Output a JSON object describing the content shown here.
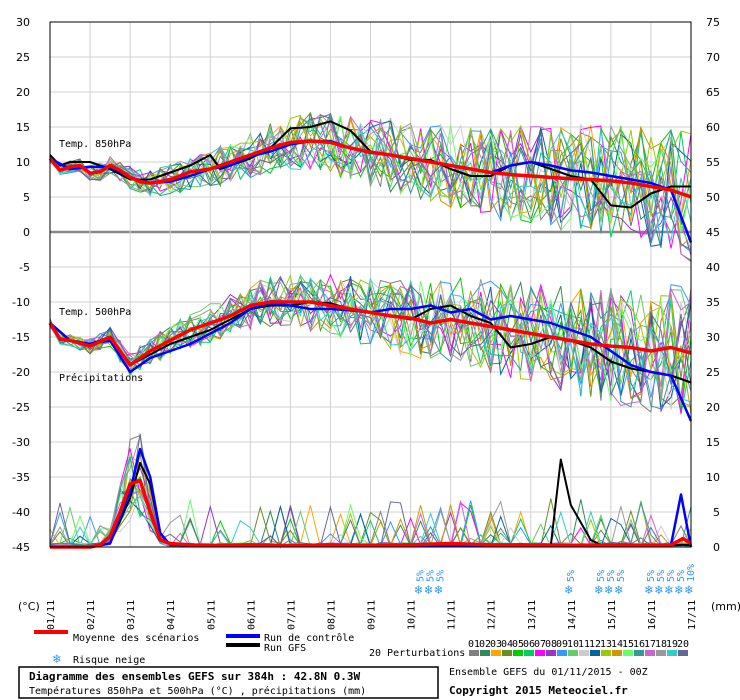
{
  "chart_data": {
    "type": "line",
    "title": "Diagramme des ensembles GEFS sur 384h : 42.8N 0.3W",
    "subtitle": "Températures 850hPa et 500hPa (°C) , précipitations (mm)",
    "left_axis_unit": "(°C)",
    "right_axis_unit": "(mm)",
    "left_axis": {
      "min": -45,
      "max": 30,
      "ticks": [
        30,
        25,
        20,
        15,
        10,
        5,
        0,
        -5,
        -10,
        -15,
        -20,
        -25,
        -30,
        -35,
        -40,
        -45
      ]
    },
    "right_axis": {
      "min": 0,
      "max": 75,
      "ticks": [
        75,
        70,
        65,
        60,
        55,
        50,
        45,
        40,
        35,
        30,
        25,
        20,
        15,
        10,
        5,
        0
      ]
    },
    "x_dates": [
      "01/11",
      "02/11",
      "03/11",
      "04/11",
      "05/11",
      "06/11",
      "07/11",
      "08/11",
      "09/11",
      "10/11",
      "11/11",
      "12/11",
      "13/11",
      "14/11",
      "15/11",
      "16/11",
      "17/11"
    ],
    "panel_labels": {
      "t850": "Temp. 850hPa",
      "t500": "Temp. 500hPa",
      "precip": "Précipitations"
    },
    "legend": {
      "mean": "Moyenne des scénarios",
      "control": "Run de contrôle",
      "gfs": "Run GFS",
      "snow": "Risque neige",
      "perturbations": "20 Perturbations",
      "perturbation_ids": [
        "01",
        "02",
        "03",
        "04",
        "05",
        "06",
        "07",
        "08",
        "09",
        "10",
        "11",
        "12",
        "13",
        "14",
        "15",
        "16",
        "17",
        "18",
        "19",
        "20"
      ]
    },
    "colors": {
      "mean": "#ff0000",
      "control": "#0000ff",
      "gfs": "#000000",
      "snow": "#3399ff",
      "perturbations": [
        "#808080",
        "#2e8b57",
        "#ffa500",
        "#6b8e23",
        "#00cc00",
        "#00cc66",
        "#ff00ff",
        "#9933cc",
        "#3399ff",
        "#66cc66",
        "#cccccc",
        "#006699",
        "#99cc00",
        "#cc9900",
        "#66ff66",
        "#339999",
        "#cc66cc",
        "#999999",
        "#33cccc",
        "#666699"
      ]
    },
    "series": [
      {
        "name": "Moyenne des scénarios",
        "panel": "t850",
        "x": [
          0,
          0.25,
          0.5,
          0.75,
          1,
          1.25,
          1.5,
          1.75,
          2,
          2.25,
          2.5,
          2.75,
          3,
          3.25,
          3.5,
          3.75,
          4,
          4.5,
          5,
          5.5,
          6,
          6.5,
          7,
          7.5,
          8,
          8.5,
          9,
          9.5,
          10,
          10.5,
          11,
          11.5,
          12,
          12.5,
          13,
          13.5,
          14,
          14.5,
          15,
          15.5,
          16
        ],
        "values": [
          10.5,
          8.8,
          9.3,
          9.5,
          8.4,
          8.6,
          9.5,
          8.8,
          7.8,
          7.2,
          7,
          7.2,
          7.5,
          8,
          8.6,
          8.8,
          9,
          10,
          11,
          12,
          12.8,
          13,
          12.8,
          12,
          11.4,
          11,
          10.5,
          10,
          9.5,
          9,
          8.5,
          8.2,
          8,
          7.8,
          7.6,
          7.5,
          7.3,
          7,
          6.5,
          6,
          5
        ]
      },
      {
        "name": "Run de contrôle",
        "panel": "t850",
        "x": [
          0,
          0.5,
          1,
          1.5,
          2,
          2.5,
          3,
          3.5,
          4,
          4.5,
          5,
          5.5,
          6,
          6.5,
          7,
          7.5,
          8,
          8.5,
          9,
          9.5,
          10,
          10.5,
          11,
          11.5,
          12,
          12.5,
          13,
          13.5,
          14,
          14.5,
          15,
          15.5,
          16
        ],
        "values": [
          10.5,
          9,
          9.3,
          9.3,
          7.8,
          7,
          7.2,
          8,
          9,
          9.5,
          10.8,
          11.5,
          12.5,
          13,
          13,
          12,
          11.3,
          11,
          10.5,
          10,
          9.5,
          9,
          8.5,
          9.5,
          10,
          9.5,
          8.8,
          8.5,
          8,
          7.5,
          7,
          6,
          -1.5
        ]
      },
      {
        "name": "Run GFS",
        "panel": "t850",
        "x": [
          0,
          0.25,
          0.5,
          1,
          1.5,
          2,
          2.5,
          3,
          3.5,
          4,
          4.25,
          4.5,
          5,
          5.5,
          6,
          6.5,
          7,
          7.5,
          8,
          8.5,
          9,
          9.5,
          10,
          10.5,
          11,
          11.5,
          12,
          12.5,
          13,
          13.5,
          14,
          14.5,
          15,
          15.5,
          16
        ],
        "values": [
          11,
          9.5,
          10,
          10,
          9,
          7.5,
          7.5,
          8.5,
          9.5,
          11,
          9,
          9.5,
          10.5,
          12,
          14.8,
          15,
          15.8,
          14.5,
          11.5,
          11,
          10.3,
          10.3,
          9,
          8,
          8,
          9.5,
          10,
          9,
          8,
          7.5,
          3.8,
          3.5,
          5.5,
          6.5,
          6.5
        ]
      },
      {
        "name": "Moyenne des scénarios",
        "panel": "t500",
        "x": [
          0,
          0.25,
          0.5,
          1,
          1.5,
          1.75,
          2,
          2.25,
          2.5,
          3,
          3.5,
          4,
          4.5,
          5,
          5.5,
          6,
          6.5,
          7,
          7.5,
          8,
          8.5,
          9,
          9.5,
          10,
          10.5,
          11,
          11.5,
          12,
          12.5,
          13,
          13.5,
          14,
          14.5,
          15,
          15.5,
          16
        ],
        "values": [
          -13,
          -15.3,
          -15.5,
          -16.3,
          -15,
          -17,
          -19,
          -18,
          -17,
          -15.5,
          -14,
          -13,
          -12,
          -10.5,
          -10,
          -10,
          -10,
          -10.5,
          -11,
          -11.5,
          -12,
          -12.3,
          -13,
          -12.5,
          -13,
          -13.5,
          -14,
          -14.5,
          -15,
          -15.5,
          -16,
          -16.3,
          -16.5,
          -17,
          -16.5,
          -17.3
        ]
      },
      {
        "name": "Run de contrôle",
        "panel": "t500",
        "x": [
          0,
          0.5,
          1,
          1.5,
          2,
          2.5,
          3,
          3.5,
          4,
          4.5,
          5,
          5.5,
          6,
          6.5,
          7,
          7.5,
          8,
          8.5,
          9,
          9.5,
          10,
          10.5,
          11,
          11.5,
          12,
          12.5,
          13,
          13.5,
          14,
          14.5,
          15,
          15.5,
          16
        ],
        "values": [
          -13,
          -15.5,
          -16,
          -15.5,
          -20,
          -18,
          -17,
          -16,
          -14.5,
          -13,
          -11,
          -10.2,
          -10.5,
          -11,
          -11,
          -11.2,
          -11.5,
          -11,
          -11,
          -10.5,
          -11.5,
          -11,
          -12.5,
          -12,
          -12.5,
          -13,
          -14,
          -15,
          -17,
          -19,
          -20,
          -20.5,
          -27
        ]
      },
      {
        "name": "Run GFS",
        "panel": "t500",
        "x": [
          0,
          0.5,
          1,
          1.5,
          2,
          2.5,
          3,
          3.5,
          4,
          4.5,
          5,
          5.5,
          6,
          6.5,
          7,
          7.5,
          8,
          8.5,
          9,
          9.5,
          10,
          10.5,
          11,
          11.5,
          12,
          12.5,
          13,
          13.5,
          14,
          14.5,
          15,
          15.5,
          16
        ],
        "values": [
          -13,
          -15.5,
          -16,
          -15,
          -19,
          -17.5,
          -16,
          -15,
          -14,
          -12.5,
          -11,
          -10.5,
          -10.5,
          -10,
          -10.2,
          -11,
          -11.5,
          -12,
          -12.5,
          -11,
          -10.5,
          -12,
          -13,
          -16.5,
          -16,
          -15,
          -15.5,
          -16.5,
          -18.5,
          -19.5,
          -20,
          -20.5,
          -21.5
        ]
      },
      {
        "name": "Moyenne des scénarios",
        "panel": "precip",
        "x": [
          0,
          0.5,
          1,
          1.25,
          1.5,
          1.75,
          2,
          2.25,
          2.5,
          2.75,
          3,
          3.5,
          4,
          5,
          6,
          7,
          8,
          9,
          10,
          11,
          12,
          13,
          14,
          15,
          15.5,
          15.8,
          16
        ],
        "values": [
          0,
          0,
          0,
          0.3,
          1.5,
          5,
          9,
          9.5,
          5,
          1,
          0.5,
          0.3,
          0.2,
          0.3,
          0.2,
          0.3,
          0.2,
          0.3,
          0.5,
          0.3,
          0.3,
          0.2,
          0.3,
          0.2,
          0.3,
          1.2,
          0.5
        ]
      },
      {
        "name": "Run de contrôle",
        "panel": "precip",
        "x": [
          0,
          1,
          1.5,
          2,
          2.25,
          2.5,
          2.75,
          3,
          4,
          6,
          8,
          10,
          12,
          14,
          15,
          15.5,
          15.75,
          16
        ],
        "values": [
          0,
          0,
          0.5,
          8,
          14,
          10,
          2,
          0.3,
          0.2,
          0.2,
          0.2,
          0.2,
          0.2,
          0.2,
          0.2,
          0.3,
          7.5,
          0
        ]
      },
      {
        "name": "Run GFS",
        "panel": "precip",
        "x": [
          0,
          1,
          1.5,
          2,
          2.25,
          2.5,
          2.75,
          3,
          4,
          6,
          8,
          10,
          12,
          12.5,
          12.75,
          13,
          13.5,
          13.75,
          14,
          15,
          15.75,
          16
        ],
        "values": [
          0,
          0,
          0.5,
          7,
          12,
          9,
          2,
          0.3,
          0.2,
          0.2,
          0.2,
          0.2,
          0.2,
          0.2,
          12.5,
          6,
          1,
          0.3,
          0.2,
          0.2,
          0.3,
          0.3
        ]
      }
    ],
    "snow_risk": [
      {
        "date_index": 9.25,
        "percents": [
          "5%"
        ]
      },
      {
        "date_index": 9.5,
        "percents": [
          "5%"
        ]
      },
      {
        "date_index": 9.75,
        "percents": [
          "5%"
        ]
      },
      {
        "date_index": 13,
        "percents": [
          "5%"
        ]
      },
      {
        "date_index": 13.75,
        "percents": [
          "5%"
        ]
      },
      {
        "date_index": 14,
        "percents": [
          "5%"
        ]
      },
      {
        "date_index": 14.25,
        "percents": [
          "5%"
        ]
      },
      {
        "date_index": 15,
        "percents": [
          "5%"
        ]
      },
      {
        "date_index": 15.25,
        "percents": [
          "5%"
        ]
      },
      {
        "date_index": 15.5,
        "percents": [
          "5%"
        ]
      },
      {
        "date_index": 15.75,
        "percents": [
          "5%"
        ]
      },
      {
        "date_index": 16,
        "percents": [
          "10%"
        ]
      }
    ]
  },
  "footer": {
    "ensemble": "Ensemble GEFS du 01/11/2015 - 00Z",
    "copyright": "Copyright 2015 Meteociel.fr"
  }
}
